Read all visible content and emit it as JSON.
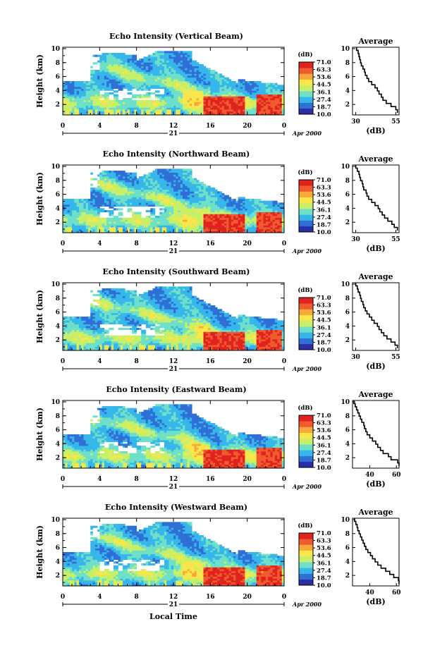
{
  "chart_data": {
    "type": "heatmap",
    "colorbar": {
      "unit_label": "(dB)",
      "tick_labels": [
        "71.0",
        "63.3",
        "53.6",
        "44.5",
        "36.1",
        "27.4",
        "18.7",
        "10.0"
      ],
      "range": [
        10.0,
        71.0
      ],
      "colors": [
        "#2b2ea5",
        "#2f6fd6",
        "#37b6ea",
        "#6fe0c8",
        "#c7f06a",
        "#f8e64a",
        "#f7a93a",
        "#ef5a2e",
        "#e0231f"
      ]
    },
    "x_ticks": [
      "0",
      "4",
      "8",
      "12",
      "16",
      "20",
      "0"
    ],
    "x_range": [
      0,
      24
    ],
    "y_ticks": [
      "2",
      "4",
      "6",
      "8",
      "10"
    ],
    "y_range": [
      0.5,
      10.2
    ],
    "date_label": "21",
    "date_suffix": "Apr 2000",
    "xlabel": "Local Time",
    "ylabel": "Height (km)",
    "profile_title": "Average",
    "profile_xlabel": "(dB)",
    "panels": [
      {
        "title": "Echo Intensity (Vertical Beam)",
        "profile_xticks": [
          "30",
          "55"
        ],
        "profile_xrange": [
          28,
          57
        ],
        "profile_values": [
          56.0,
          55.0,
          52.0,
          49.0,
          47.0,
          46.0,
          44.5,
          43.5,
          42.0,
          40.0,
          38.0,
          37.0,
          36.0,
          35.5,
          34.5,
          33.5,
          33.0,
          32.5,
          32.0,
          31.5,
          30.5
        ]
      },
      {
        "title": "Echo Intensity (Northward Beam)",
        "profile_xticks": [
          "30",
          "55"
        ],
        "profile_xrange": [
          28,
          57
        ],
        "profile_values": [
          56.0,
          54.0,
          52.5,
          50.0,
          48.0,
          46.5,
          45.0,
          44.0,
          42.0,
          40.0,
          38.0,
          37.0,
          36.5,
          35.0,
          34.5,
          34.0,
          33.0,
          32.5,
          32.0,
          31.0,
          30.0
        ]
      },
      {
        "title": "Echo Intensity (Southward Beam)",
        "profile_xticks": [
          "30",
          "55"
        ],
        "profile_xrange": [
          28,
          57
        ],
        "profile_values": [
          56.0,
          54.5,
          52.0,
          49.5,
          47.5,
          46.0,
          44.5,
          43.5,
          41.5,
          40.0,
          38.5,
          37.0,
          36.0,
          35.0,
          34.5,
          33.5,
          33.0,
          32.5,
          31.5,
          31.0,
          30.0
        ]
      },
      {
        "title": "Echo Intensity (Eastward Beam)",
        "profile_xticks": [
          "40",
          "60"
        ],
        "profile_xrange": [
          27,
          62
        ],
        "profile_values": [
          62.0,
          61.0,
          56.0,
          54.0,
          50.0,
          48.0,
          46.0,
          44.5,
          42.0,
          40.0,
          38.0,
          37.0,
          36.0,
          35.5,
          34.0,
          33.0,
          32.0,
          31.0,
          30.0,
          29.0,
          28.0
        ]
      },
      {
        "title": "Echo Intensity (Westward Beam)",
        "profile_xticks": [
          "40",
          "60"
        ],
        "profile_xrange": [
          27,
          62
        ],
        "profile_values": [
          62.0,
          61.5,
          58.0,
          55.0,
          52.0,
          48.5,
          46.0,
          44.0,
          42.0,
          40.5,
          38.5,
          37.0,
          36.0,
          35.0,
          34.0,
          33.0,
          32.0,
          31.0,
          30.5,
          29.5,
          28.5
        ]
      }
    ]
  }
}
